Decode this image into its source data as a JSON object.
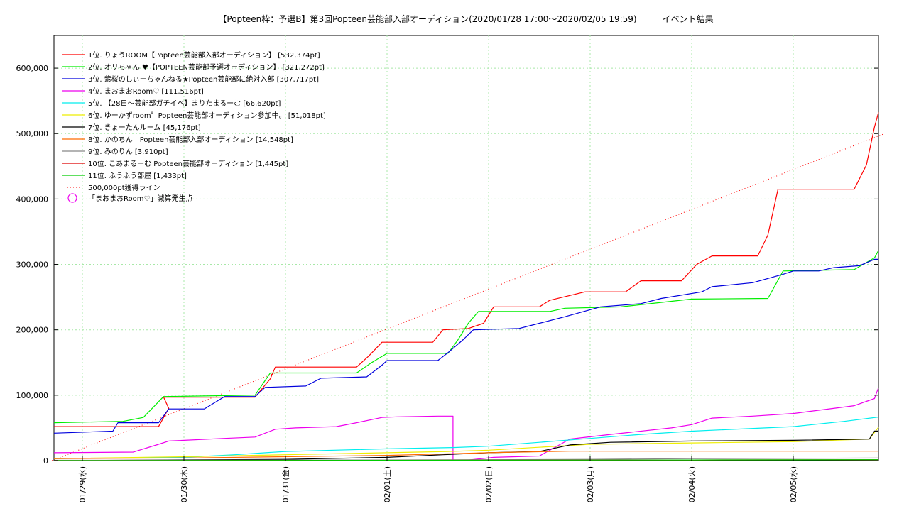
{
  "chart_data": {
    "type": "line",
    "title": "【Popteen枠：予選B】第3回Popteen芸能部入部オーディション(2020/01/28 17:00～2020/02/05 19:59)　　　イベント結果",
    "xlabel": "",
    "ylabel": "",
    "ylim": [
      0,
      650000
    ],
    "xlim": [
      0,
      8.0
    ],
    "grid": true,
    "legend_position": "top-left",
    "y_ticks": [
      0,
      100000,
      200000,
      300000,
      400000,
      500000,
      600000
    ],
    "y_tick_labels": [
      "0",
      "100,000",
      "200,000",
      "300,000",
      "400,000",
      "500,000",
      "600,000"
    ],
    "x_ticks": [
      0,
      1,
      2,
      3,
      4,
      5,
      6,
      7
    ],
    "x_tick_labels": [
      "01/29(水)",
      "01/30(木)",
      "01/31(金)",
      "02/01(土)",
      "02/02(日)",
      "02/03(月)",
      "02/04(火)",
      "02/05(水)"
    ],
    "series": [
      {
        "name": "1位. りょうROOM【Popteen芸能部入部オーディション】 [532,374pt]",
        "color": "#ff0000",
        "points": [
          [
            -0.3,
            52000
          ],
          [
            0.75,
            52000
          ],
          [
            0.85,
            80000
          ],
          [
            0.8,
            97000
          ],
          [
            1.7,
            97000
          ],
          [
            1.85,
            125000
          ],
          [
            1.9,
            143000
          ],
          [
            2.7,
            143000
          ],
          [
            2.82,
            160000
          ],
          [
            2.95,
            181000
          ],
          [
            3.45,
            181000
          ],
          [
            3.55,
            200000
          ],
          [
            3.8,
            202000
          ],
          [
            3.95,
            210000
          ],
          [
            4.05,
            235000
          ],
          [
            4.5,
            235000
          ],
          [
            4.6,
            245000
          ],
          [
            4.95,
            258000
          ],
          [
            5.35,
            258000
          ],
          [
            5.5,
            275000
          ],
          [
            5.9,
            275000
          ],
          [
            6.05,
            300000
          ],
          [
            6.2,
            313000
          ],
          [
            6.65,
            313000
          ],
          [
            6.75,
            345000
          ],
          [
            6.85,
            415000
          ],
          [
            7.15,
            415000
          ],
          [
            7.6,
            415000
          ],
          [
            7.72,
            452000
          ],
          [
            7.8,
            510000
          ],
          [
            7.9,
            532374
          ]
        ]
      },
      {
        "name": "2位. オリちゃん ♥【POPTEEN芸能部予選オーディション】 [321,272pt]",
        "color": "#00ee00",
        "points": [
          [
            -0.3,
            58000
          ],
          [
            0.4,
            60000
          ],
          [
            0.6,
            66000
          ],
          [
            0.8,
            98000
          ],
          [
            1.7,
            100000
          ],
          [
            1.85,
            134000
          ],
          [
            2.7,
            134000
          ],
          [
            2.85,
            150000
          ],
          [
            3.0,
            164000
          ],
          [
            3.6,
            164000
          ],
          [
            3.7,
            185000
          ],
          [
            3.8,
            210000
          ],
          [
            3.9,
            228000
          ],
          [
            4.6,
            228000
          ],
          [
            4.75,
            233000
          ],
          [
            5.3,
            235000
          ],
          [
            6.0,
            247000
          ],
          [
            6.75,
            248000
          ],
          [
            6.9,
            290000
          ],
          [
            7.6,
            292000
          ],
          [
            7.8,
            310000
          ],
          [
            7.9,
            321272
          ]
        ]
      },
      {
        "name": "3位. 紫桜のしぃーちゃんねる★Popteen芸能部に絶対入部 [307,717pt]",
        "color": "#0000dd",
        "points": [
          [
            -0.3,
            42000
          ],
          [
            0.3,
            45000
          ],
          [
            0.35,
            58000
          ],
          [
            0.75,
            58000
          ],
          [
            0.85,
            79000
          ],
          [
            1.2,
            79000
          ],
          [
            1.4,
            98000
          ],
          [
            1.7,
            98000
          ],
          [
            1.8,
            112000
          ],
          [
            2.2,
            114000
          ],
          [
            2.35,
            126000
          ],
          [
            2.8,
            128000
          ],
          [
            2.95,
            146000
          ],
          [
            3.0,
            153000
          ],
          [
            3.5,
            153000
          ],
          [
            3.6,
            165000
          ],
          [
            3.75,
            185000
          ],
          [
            3.85,
            200000
          ],
          [
            4.3,
            202000
          ],
          [
            4.5,
            210000
          ],
          [
            4.75,
            220000
          ],
          [
            5.1,
            235000
          ],
          [
            5.5,
            240000
          ],
          [
            5.7,
            248000
          ],
          [
            6.1,
            258000
          ],
          [
            6.2,
            266000
          ],
          [
            6.6,
            272000
          ],
          [
            6.9,
            285000
          ],
          [
            7.0,
            290000
          ],
          [
            7.25,
            290000
          ],
          [
            7.4,
            295000
          ],
          [
            7.65,
            298000
          ],
          [
            7.8,
            307717
          ],
          [
            7.9,
            307717
          ]
        ]
      },
      {
        "name": "4位. まおまおRoom♡ [111,516pt]",
        "color": "#ee00ee",
        "points": [
          [
            -0.3,
            12000
          ],
          [
            0.5,
            13000
          ],
          [
            0.75,
            25000
          ],
          [
            0.85,
            30000
          ],
          [
            1.4,
            34000
          ],
          [
            1.7,
            36000
          ],
          [
            1.9,
            48000
          ],
          [
            2.1,
            50000
          ],
          [
            2.5,
            52000
          ],
          [
            2.7,
            58000
          ],
          [
            2.95,
            66000
          ],
          [
            3.1,
            67000
          ],
          [
            3.5,
            68000
          ],
          [
            3.65,
            68000
          ],
          [
            3.65,
            0
          ],
          [
            3.75,
            0
          ],
          [
            4.05,
            5000
          ],
          [
            4.5,
            7000
          ],
          [
            4.8,
            33000
          ],
          [
            5.2,
            40000
          ],
          [
            5.8,
            50000
          ],
          [
            6.0,
            55000
          ],
          [
            6.2,
            65000
          ],
          [
            6.6,
            68000
          ],
          [
            7.0,
            72000
          ],
          [
            7.3,
            78000
          ],
          [
            7.6,
            84000
          ],
          [
            7.8,
            95000
          ],
          [
            7.9,
            111516
          ]
        ]
      },
      {
        "name": "5位. 【28日～芸能部ガチイベ】まりたまるーむ [66,620pt]",
        "color": "#00eeee",
        "points": [
          [
            -0.3,
            3000
          ],
          [
            1.0,
            5000
          ],
          [
            1.5,
            9000
          ],
          [
            2.0,
            14000
          ],
          [
            3.0,
            18000
          ],
          [
            3.65,
            20000
          ],
          [
            4.0,
            22000
          ],
          [
            5.0,
            34000
          ],
          [
            5.5,
            40000
          ],
          [
            6.0,
            45000
          ],
          [
            7.0,
            52000
          ],
          [
            7.5,
            60000
          ],
          [
            7.9,
            66620
          ]
        ]
      },
      {
        "name": "6位. ゆーかずroom゜Popteen芸能部オーディション参加中。 [51,018pt]",
        "color": "#eeee00",
        "points": [
          [
            -0.3,
            3000
          ],
          [
            1.0,
            6000
          ],
          [
            2.0,
            9000
          ],
          [
            3.0,
            12000
          ],
          [
            3.6,
            14000
          ],
          [
            4.0,
            16000
          ],
          [
            5.0,
            25000
          ],
          [
            6.0,
            27000
          ],
          [
            7.0,
            29000
          ],
          [
            7.75,
            33000
          ],
          [
            7.9,
            51018
          ]
        ]
      },
      {
        "name": "7位. きょーたんルーム [45,176pt]",
        "color": "#000000",
        "points": [
          [
            -0.3,
            0
          ],
          [
            2.0,
            2000
          ],
          [
            3.0,
            5000
          ],
          [
            3.55,
            9000
          ],
          [
            4.0,
            12000
          ],
          [
            4.5,
            14000
          ],
          [
            4.8,
            24000
          ],
          [
            5.2,
            28000
          ],
          [
            6.0,
            30000
          ],
          [
            7.0,
            31000
          ],
          [
            7.75,
            33000
          ],
          [
            7.8,
            45176
          ],
          [
            7.9,
            45176
          ]
        ]
      },
      {
        "name": "8位. かのちん　Popteen芸能部入部オーディション [14,548pt]",
        "color": "#ff6a00",
        "points": [
          [
            -0.3,
            3000
          ],
          [
            1.0,
            4000
          ],
          [
            2.0,
            6000
          ],
          [
            3.0,
            8000
          ],
          [
            3.5,
            10000
          ],
          [
            4.0,
            12000
          ],
          [
            4.8,
            14548
          ],
          [
            7.9,
            14548
          ]
        ]
      },
      {
        "name": "9位. みのりん [3,910pt]",
        "color": "#888888",
        "points": [
          [
            -0.3,
            500
          ],
          [
            3.0,
            1000
          ],
          [
            5.0,
            2000
          ],
          [
            6.0,
            3000
          ],
          [
            7.9,
            3910
          ]
        ]
      },
      {
        "name": "10位. こあまるーむ Popteen芸能部オーディション [1,445pt]",
        "color": "#dd0000",
        "points": [
          [
            -0.3,
            0
          ],
          [
            6.0,
            1000
          ],
          [
            7.9,
            1445
          ]
        ]
      },
      {
        "name": "11位. ふうふう部屋 [1,433pt]",
        "color": "#00cc00",
        "points": [
          [
            -0.3,
            0
          ],
          [
            6.0,
            1000
          ],
          [
            7.9,
            1433
          ]
        ]
      }
    ],
    "reference_line": {
      "name": "500,000pt獲得ライン",
      "color": "#ff0000",
      "from": [
        -0.3,
        0
      ],
      "to": [
        7.9,
        500000
      ]
    },
    "marker_legend": {
      "name": "「まおまおRoom♡」減算発生点",
      "color": "#ee00ee"
    }
  }
}
